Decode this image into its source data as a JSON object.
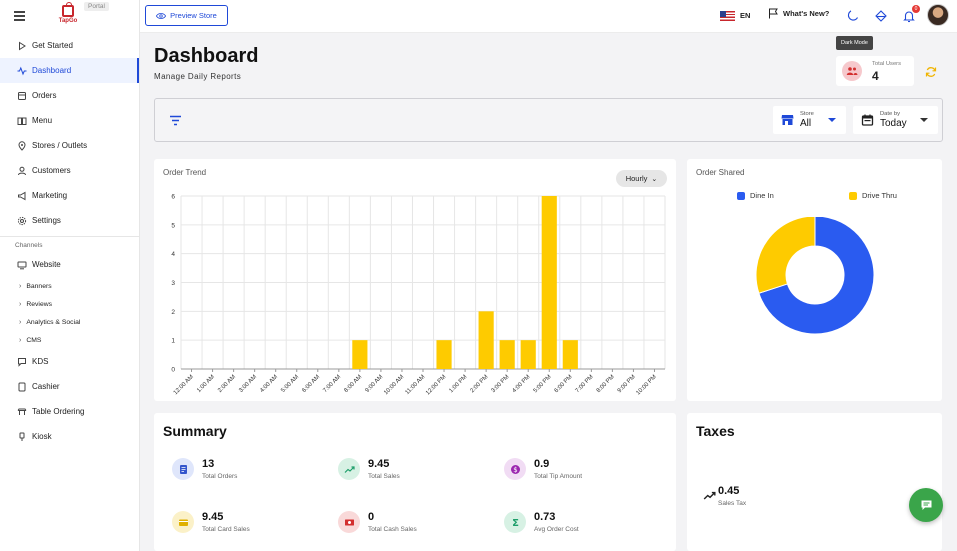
{
  "app": {
    "brand_text": "TapGo",
    "portal_badge": "Portal"
  },
  "sidebar": {
    "items": [
      {
        "label": "Get Started",
        "icon": "play-icon",
        "active": false
      },
      {
        "label": "Dashboard",
        "icon": "activity-icon",
        "active": true
      },
      {
        "label": "Orders",
        "icon": "box-icon",
        "active": false
      },
      {
        "label": "Menu",
        "icon": "book-icon",
        "active": false
      },
      {
        "label": "Stores / Outlets",
        "icon": "location-pin-icon",
        "active": false
      },
      {
        "label": "Customers",
        "icon": "user-icon",
        "active": false
      },
      {
        "label": "Marketing",
        "icon": "megaphone-icon",
        "active": false
      },
      {
        "label": "Settings",
        "icon": "gear-icon",
        "active": false
      }
    ],
    "channels_label": "Channels",
    "channels": [
      {
        "label": "Website",
        "icon": "monitor-icon"
      },
      {
        "label": "Banners",
        "sub": true
      },
      {
        "label": "Reviews",
        "sub": true
      },
      {
        "label": "Analytics & Social",
        "sub": true
      },
      {
        "label": "CMS",
        "sub": true
      },
      {
        "label": "KDS",
        "icon": "chat-bubble-icon"
      },
      {
        "label": "Cashier",
        "icon": "tablet-icon"
      },
      {
        "label": "Table Ordering",
        "icon": "table-icon"
      },
      {
        "label": "Kiosk",
        "icon": "kiosk-icon"
      }
    ]
  },
  "topbar": {
    "preview_store": "Preview Store",
    "language": "EN",
    "whats_new": "What's New?",
    "notification_count": "0",
    "tooltip": "Dark Mode"
  },
  "header": {
    "title": "Dashboard",
    "subtitle": "Manage Daily Reports",
    "total_users_label": "Total Users",
    "total_users_value": "4"
  },
  "filters": {
    "store_label": "Store",
    "store_value": "All",
    "date_label": "Date by",
    "date_value": "Today"
  },
  "order_trend": {
    "title": "Order Trend",
    "period": "Hourly"
  },
  "order_shared": {
    "title": "Order Shared",
    "legend": [
      {
        "name": "Dine In",
        "color": "#2a5bf0"
      },
      {
        "name": "Drive Thru",
        "color": "#fecb00"
      }
    ]
  },
  "chart_data": [
    {
      "type": "bar",
      "title": "Order Trend",
      "categories": [
        "12:00 AM",
        "1:00 AM",
        "2:00 AM",
        "3:00 AM",
        "4:00 AM",
        "5:00 AM",
        "6:00 AM",
        "7:00 AM",
        "8:00 AM",
        "9:00 AM",
        "10:00 AM",
        "11:00 AM",
        "12:00 PM",
        "1:00 PM",
        "2:00 PM",
        "3:00 PM",
        "4:00 PM",
        "5:00 PM",
        "6:00 PM",
        "7:00 PM",
        "8:00 PM",
        "9:00 PM",
        "10:00 PM"
      ],
      "values": [
        0,
        0,
        0,
        0,
        0,
        0,
        0,
        0,
        1,
        0,
        0,
        0,
        1,
        0,
        2,
        1,
        1,
        6,
        1,
        0,
        0,
        0,
        0
      ],
      "yticks": [
        0,
        1,
        2,
        3,
        4,
        5,
        6
      ],
      "ylim": [
        0,
        6
      ],
      "bar_color": "#fecb00",
      "grid": true
    },
    {
      "type": "pie",
      "title": "Order Shared",
      "donut": true,
      "labels": [
        "Dine In",
        "Drive Thru"
      ],
      "values": [
        70,
        30
      ],
      "colors": [
        "#2a5bf0",
        "#fecb00"
      ],
      "legend_position": "top"
    }
  ],
  "summary": {
    "title": "Summary",
    "metrics": [
      {
        "value": "13",
        "label": "Total Orders",
        "icon": "receipt-icon",
        "color": "#3355cc",
        "bg": "#dfe6fb"
      },
      {
        "value": "9.45",
        "label": "Total Sales",
        "icon": "trend-up-icon",
        "color": "#1e9e6a",
        "bg": "#d7f1e4"
      },
      {
        "value": "0.9",
        "label": "Total Tip Amount",
        "icon": "dollar-coin-icon",
        "color": "#9c27b0",
        "bg": "#f1dcf4"
      },
      {
        "value": "9.45",
        "label": "Total Card Sales",
        "icon": "credit-card-icon",
        "color": "#e0b100",
        "bg": "#fbf1c8"
      },
      {
        "value": "0",
        "label": "Total Cash Sales",
        "icon": "cash-icon",
        "color": "#d32f2f",
        "bg": "#f9d9d9"
      },
      {
        "value": "0.73",
        "label": "Avg Order Cost",
        "icon": "sigma-icon",
        "color": "#1e9e6a",
        "bg": "#d7f1e4"
      }
    ]
  },
  "taxes": {
    "title": "Taxes",
    "value": "0.45",
    "label": "Sales Tax"
  }
}
